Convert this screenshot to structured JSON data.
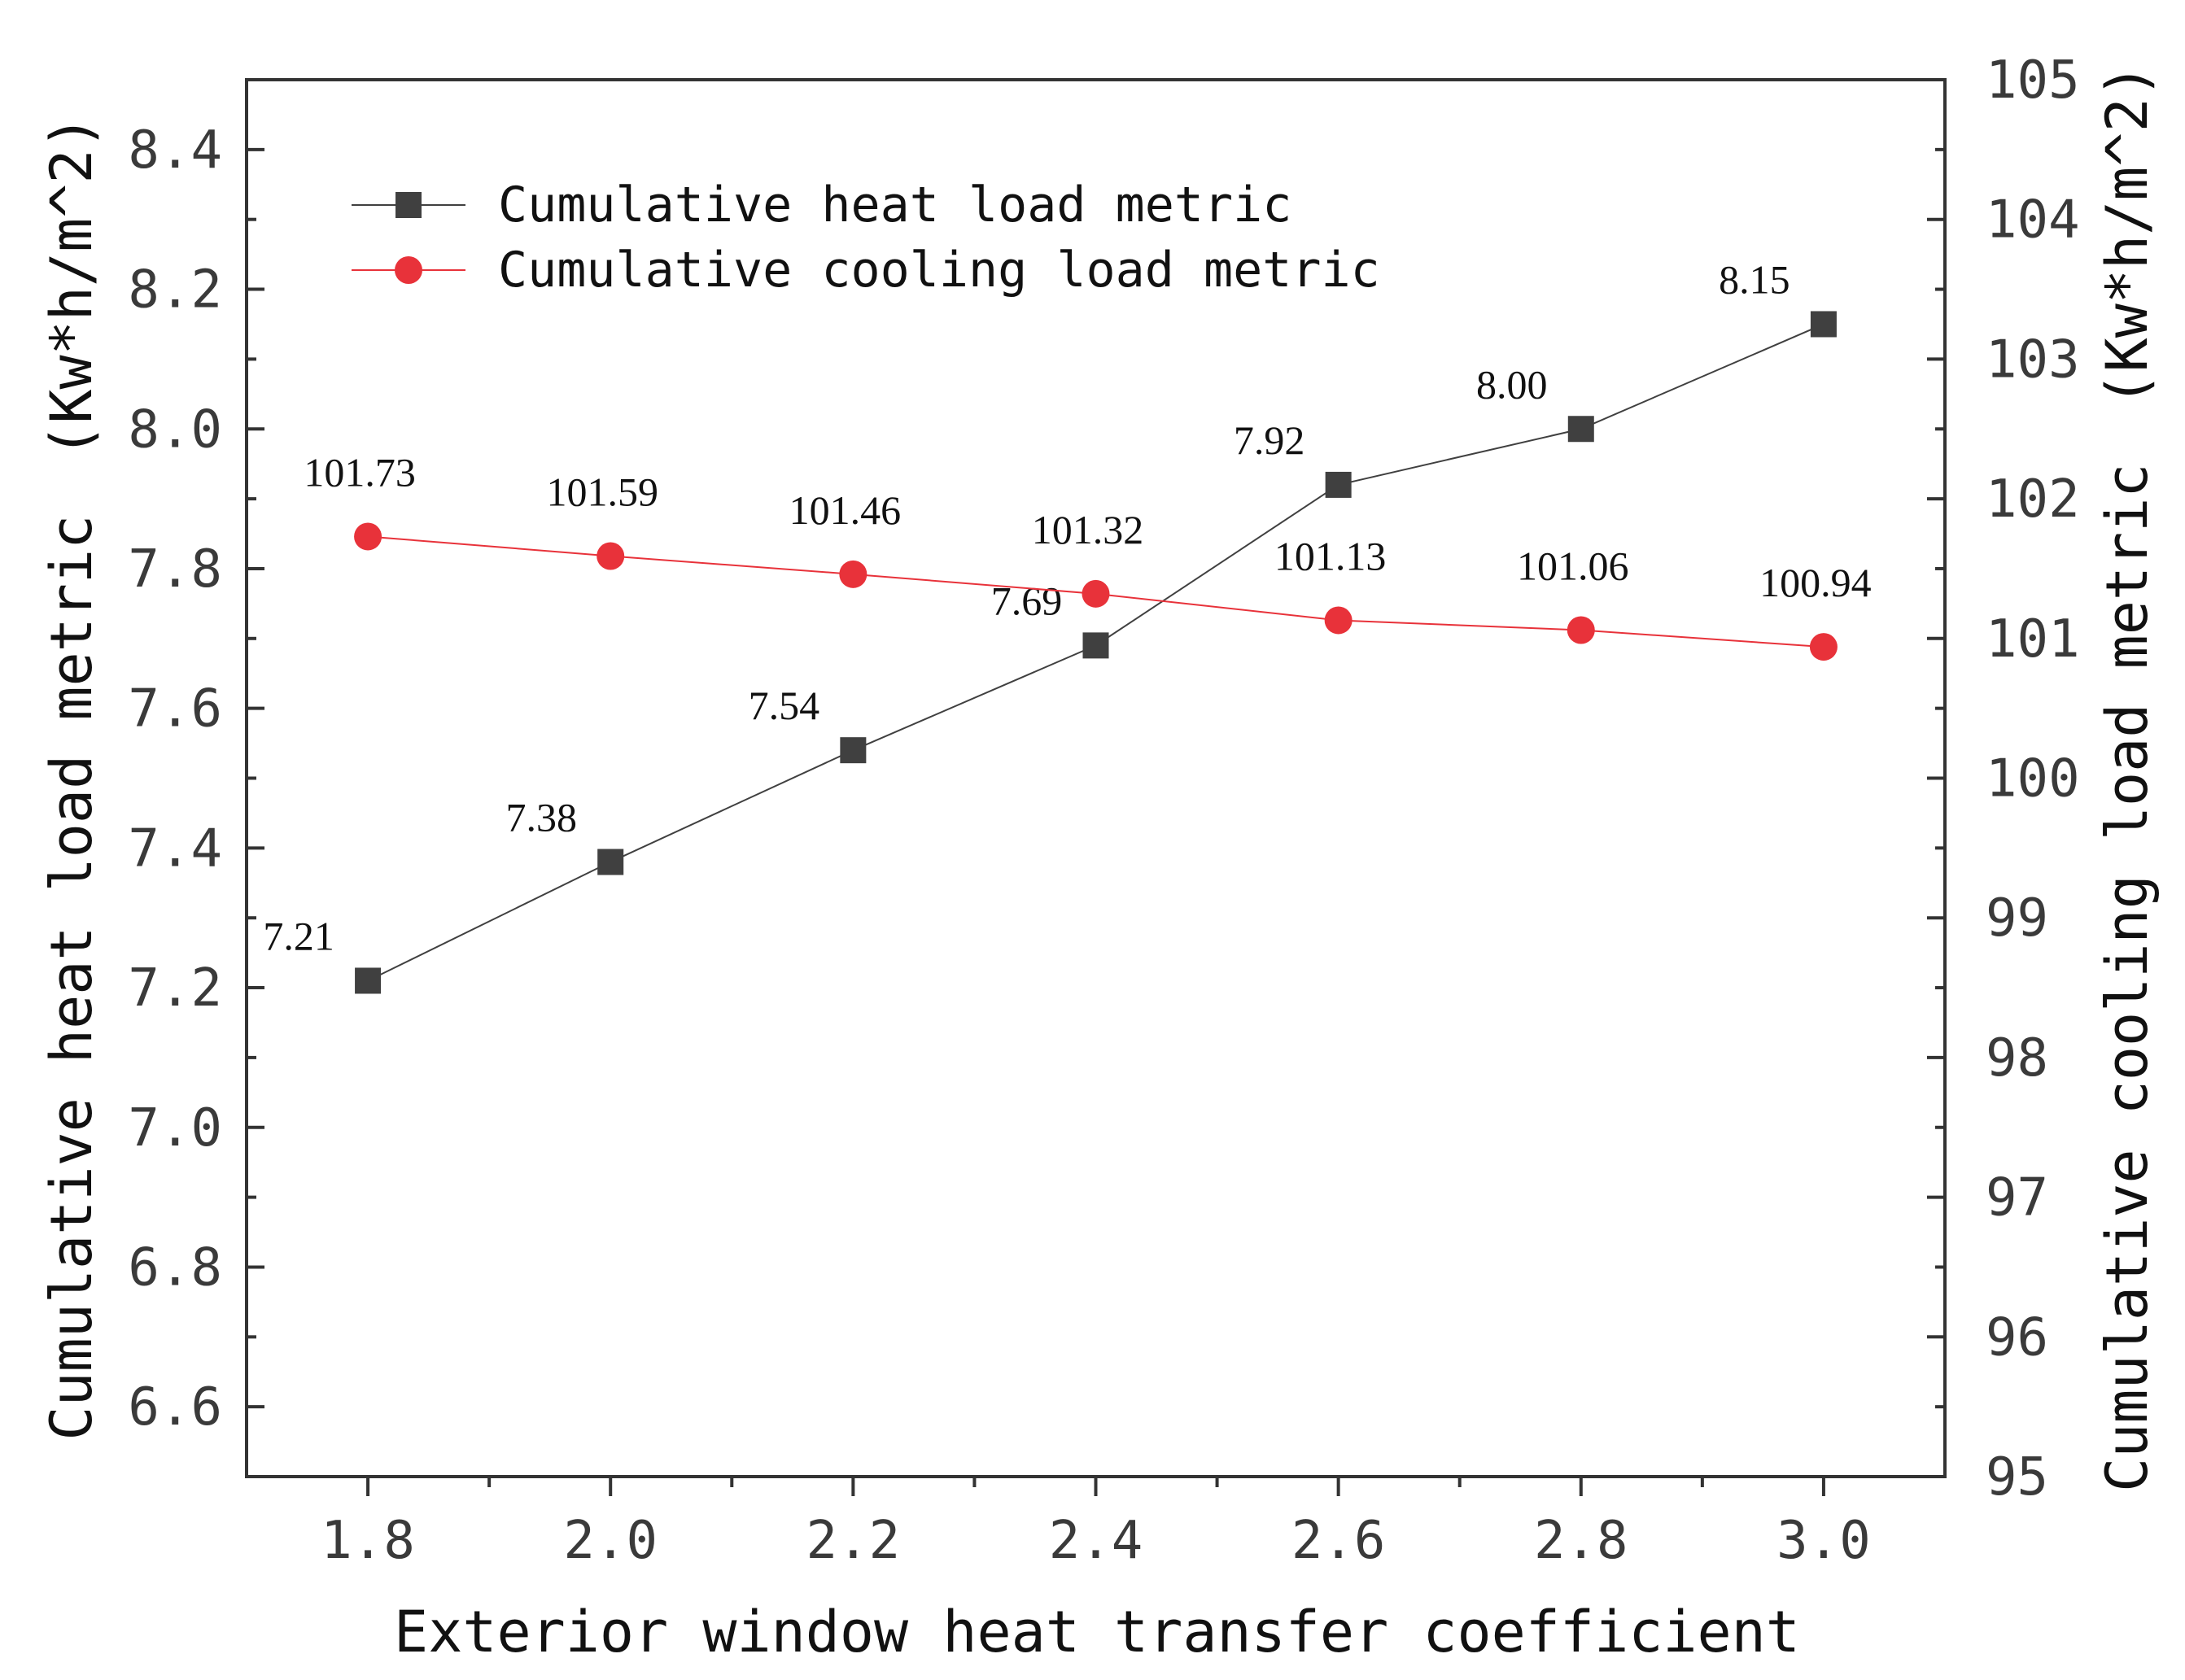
{
  "chart_data": {
    "type": "line",
    "title": "",
    "xlabel": "Exterior window heat transfer coefficient",
    "ylabel_left": "Cumulative heat load metric　(Kw*h/m^2)",
    "ylabel_right": "Cumulative cooling load metric　(Kw*h/m^2)",
    "x": [
      1.8,
      2.0,
      2.2,
      2.4,
      2.6,
      2.8,
      3.0
    ],
    "x_ticks": [
      "1.8",
      "2.0",
      "2.2",
      "2.4",
      "2.6",
      "2.8",
      "3.0"
    ],
    "xlim": [
      1.7,
      3.1
    ],
    "ylim_left": [
      6.5,
      8.5
    ],
    "ylim_right": [
      95,
      105
    ],
    "y_left_ticks": [
      "6.6",
      "6.8",
      "7.0",
      "7.2",
      "7.4",
      "7.6",
      "7.8",
      "8.0",
      "8.2",
      "8.4"
    ],
    "y_right_ticks": [
      "95",
      "96",
      "97",
      "98",
      "99",
      "100",
      "101",
      "102",
      "103",
      "104",
      "105"
    ],
    "legend_position": "top-left",
    "series": [
      {
        "name": "Cumulative heat load metric",
        "axis": "left",
        "marker": "square",
        "color": "#404040",
        "values": [
          7.21,
          7.38,
          7.54,
          7.69,
          7.92,
          8.0,
          8.15
        ],
        "labels": [
          "7.21",
          "7.38",
          "7.54",
          "7.69",
          "7.92",
          "8.00",
          "8.15"
        ]
      },
      {
        "name": "Cumulative cooling load metric",
        "axis": "right",
        "marker": "circle",
        "color": "#e8323a",
        "values": [
          101.73,
          101.59,
          101.46,
          101.32,
          101.13,
          101.06,
          100.94
        ],
        "labels": [
          "101.73",
          "101.59",
          "101.46",
          "101.32",
          "101.13",
          "101.06",
          "100.94"
        ]
      }
    ]
  }
}
